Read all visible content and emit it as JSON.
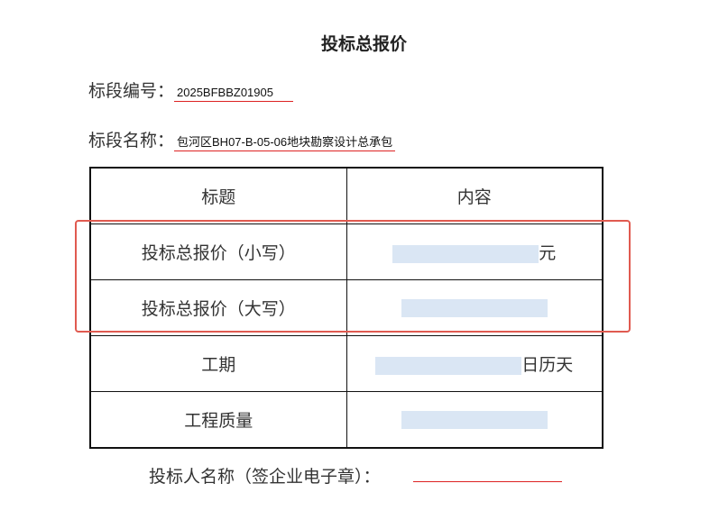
{
  "title": "投标总报价",
  "fields": [
    {
      "label": "标段编号：",
      "value": "2025BFBBZ01905"
    },
    {
      "label": "标段名称：",
      "value": "包河区BH07-B-05-06地块勘察设计总承包"
    }
  ],
  "table": {
    "headers": [
      "标题",
      "内容"
    ],
    "rows": [
      {
        "label": "投标总报价（小写）",
        "suffix": "元"
      },
      {
        "label": "投标总报价（大写）",
        "suffix": ""
      },
      {
        "label": "工期",
        "suffix": "日历天"
      },
      {
        "label": "工程质量",
        "suffix": ""
      }
    ]
  },
  "signature_label": "投标人名称（签企业电子章）：",
  "colors": {
    "highlight": "#e05a50",
    "underline": "#dd2222",
    "blank_fill": "#dae6f4"
  }
}
